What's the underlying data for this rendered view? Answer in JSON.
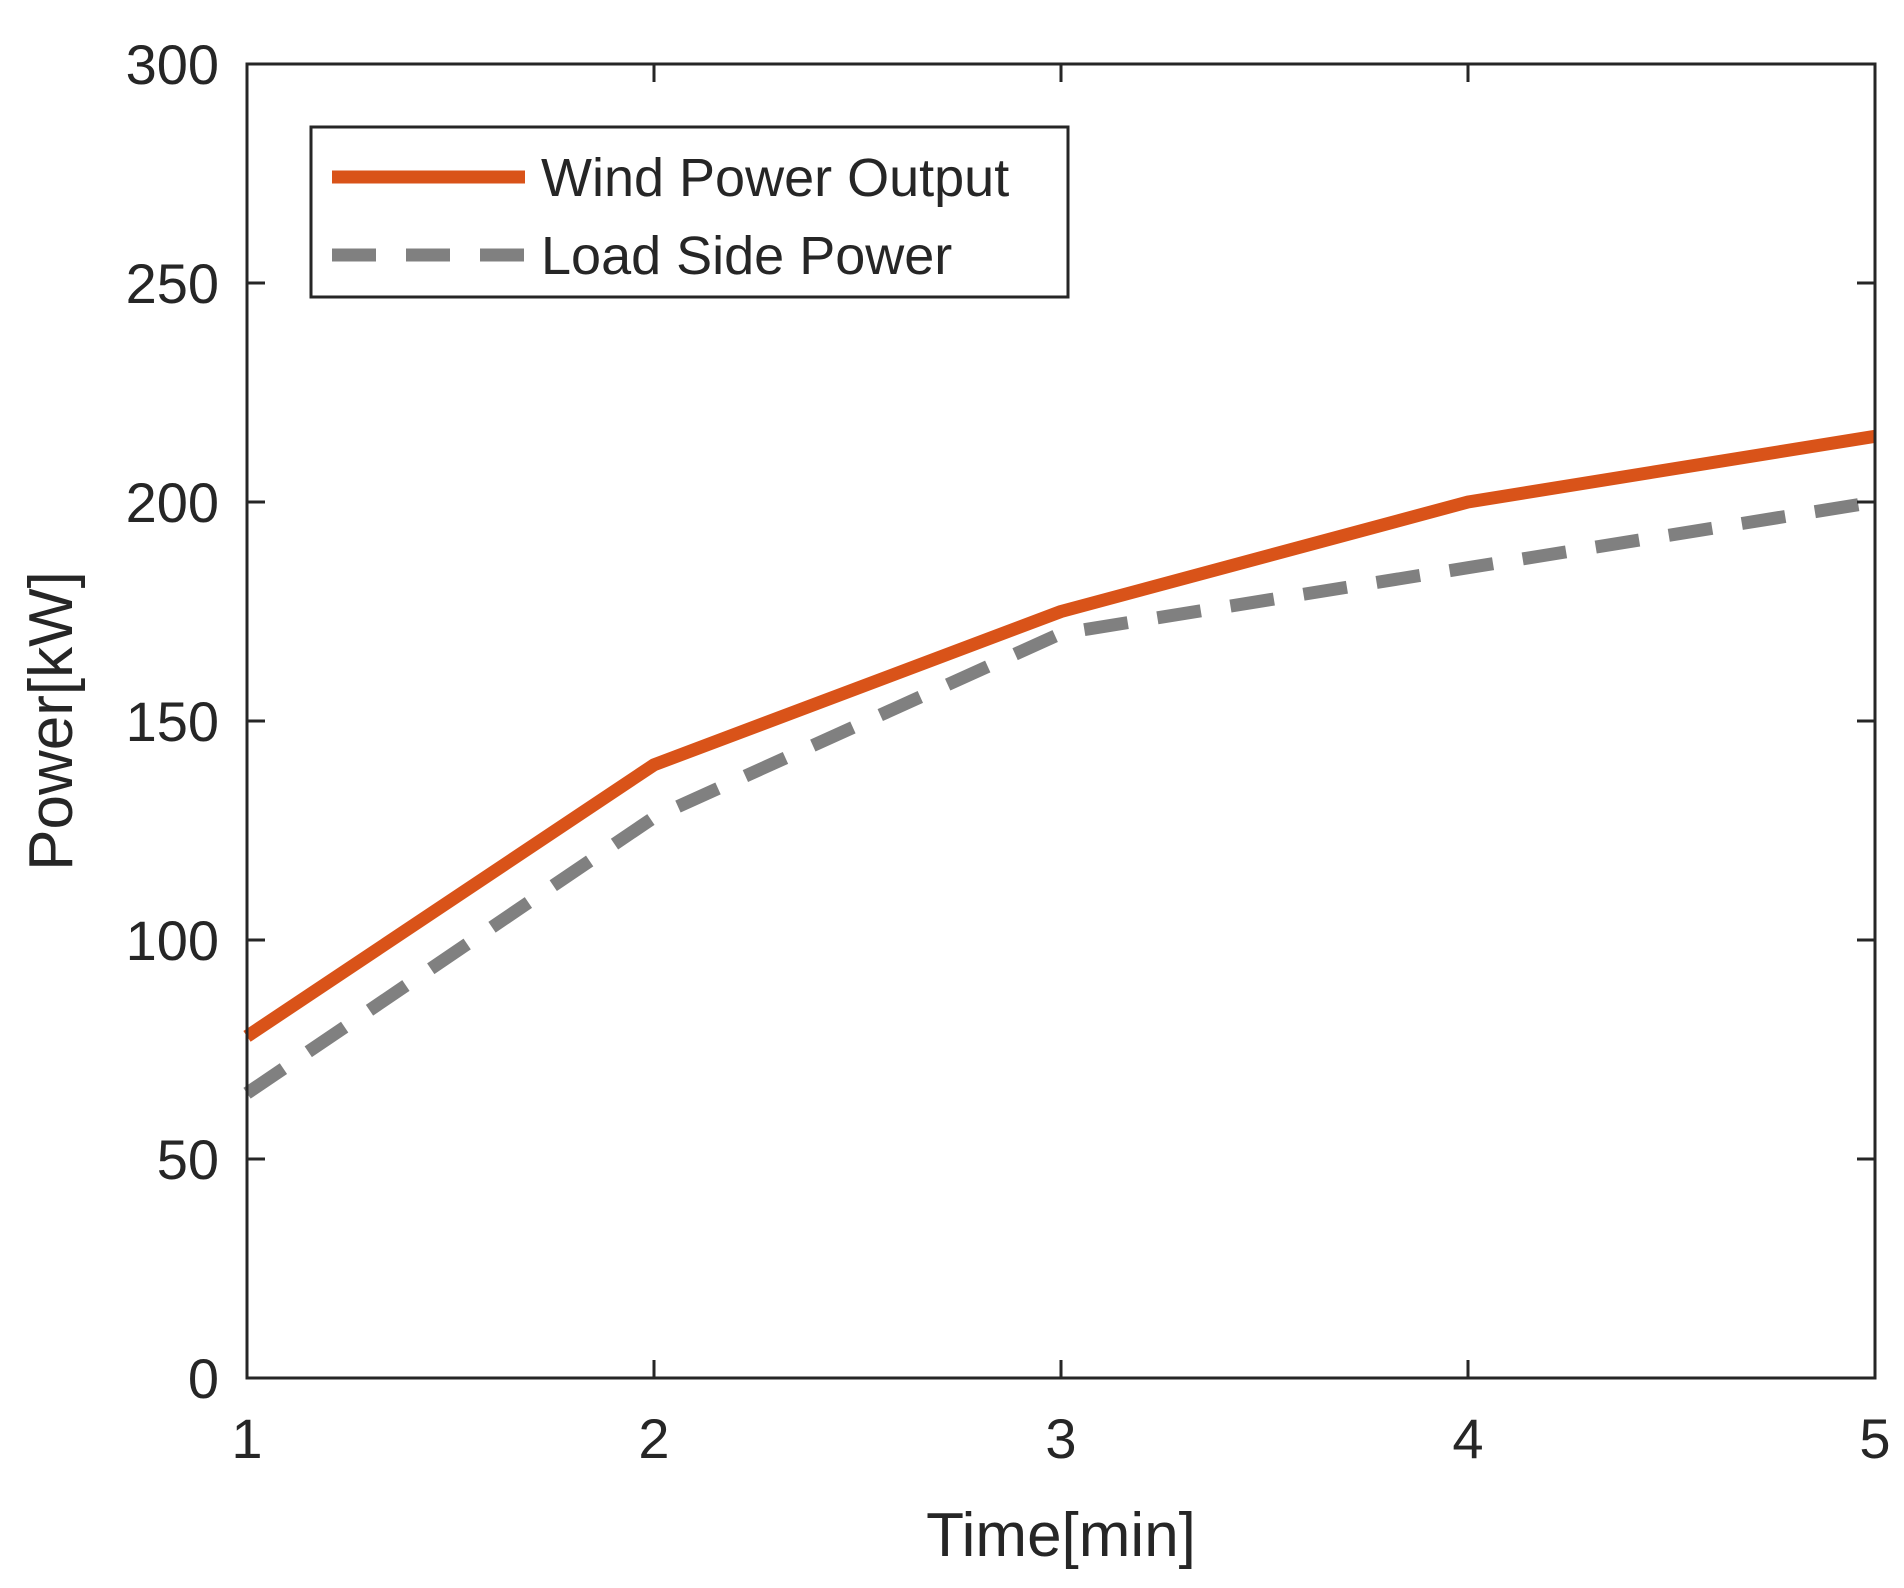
{
  "chart_data": {
    "type": "line",
    "title": "",
    "xlabel": "Time[min]",
    "ylabel": "Power[kW]",
    "x": [
      1,
      2,
      3,
      4,
      5
    ],
    "xlim": [
      1,
      5
    ],
    "ylim": [
      0,
      300
    ],
    "xticks": [
      "1",
      "2",
      "3",
      "4",
      "5"
    ],
    "yticks": [
      "0",
      "50",
      "100",
      "150",
      "200",
      "250",
      "300"
    ],
    "grid": false,
    "legend_position": "top-left",
    "series": [
      {
        "name": "Wind Power Output",
        "values": [
          78,
          140,
          175,
          200,
          215
        ],
        "color": "#D95319",
        "style": "solid"
      },
      {
        "name": "Load Side Power",
        "values": [
          65,
          128,
          170,
          185,
          200
        ],
        "color": "#808080",
        "style": "dashed"
      }
    ]
  }
}
